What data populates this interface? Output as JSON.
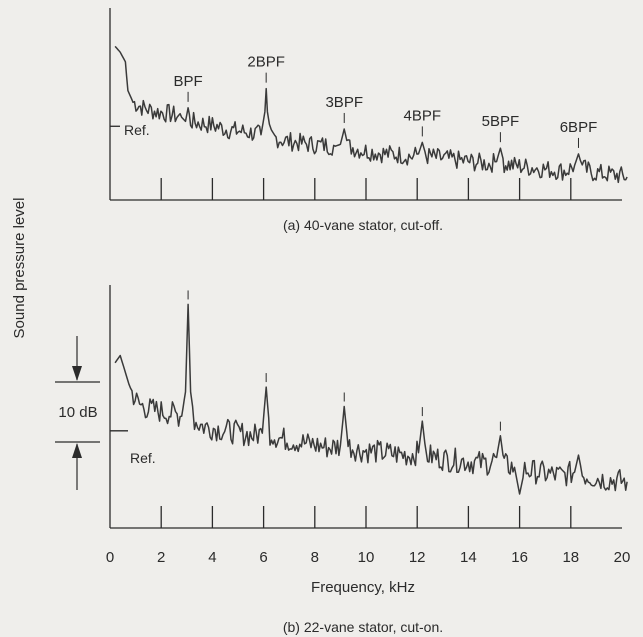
{
  "ylabel": "Sound pressure level",
  "xlabel": "Frequency, kHz",
  "scale_label": "10 dB",
  "colors": {
    "trace": "#3a3a3a",
    "axis": "#2b2b2b",
    "background": "#efeeeb"
  },
  "chart_data": [
    {
      "type": "line",
      "title": "(a) 40-vane stator, cut-off.",
      "xlim": [
        0,
        20
      ],
      "ylim": [
        0,
        50
      ],
      "ref_label": "Ref.",
      "ref_level": 19.2,
      "annotations": [
        {
          "label": "BPF",
          "x": 3.05
        },
        {
          "label": "2BPF",
          "x": 6.1
        },
        {
          "label": "3BPF",
          "x": 9.15
        },
        {
          "label": "4BPF",
          "x": 12.2
        },
        {
          "label": "5BPF",
          "x": 15.25
        },
        {
          "label": "6BPF",
          "x": 18.3
        }
      ],
      "series": [
        {
          "values": [
            [
              0.2,
              40
            ],
            [
              0.4,
              38.5
            ],
            [
              0.6,
              36
            ],
            [
              0.7,
              28.5
            ],
            [
              0.9,
              25.5
            ],
            [
              1.3,
              24
            ],
            [
              1.8,
              23
            ],
            [
              2.3,
              22.5
            ],
            [
              2.8,
              21.5
            ],
            [
              2.95,
              20.5
            ],
            [
              3.05,
              24
            ],
            [
              3.15,
              20.5
            ],
            [
              3.5,
              20
            ],
            [
              4.0,
              19.5
            ],
            [
              4.6,
              18.3
            ],
            [
              5.0,
              18
            ],
            [
              5.5,
              17.5
            ],
            [
              5.9,
              17
            ],
            [
              6.05,
              23
            ],
            [
              6.1,
              29
            ],
            [
              6.15,
              23
            ],
            [
              6.3,
              16.5
            ],
            [
              6.8,
              15.5
            ],
            [
              7.3,
              15
            ],
            [
              7.8,
              14.5
            ],
            [
              8.3,
              14.3
            ],
            [
              8.8,
              14
            ],
            [
              9.0,
              14.5
            ],
            [
              9.15,
              18.5
            ],
            [
              9.3,
              14
            ],
            [
              9.8,
              13
            ],
            [
              10.3,
              12.5
            ],
            [
              10.8,
              12
            ],
            [
              11.3,
              11.8
            ],
            [
              11.8,
              11.3
            ],
            [
              12.05,
              12
            ],
            [
              12.2,
              15
            ],
            [
              12.35,
              11.5
            ],
            [
              12.8,
              11
            ],
            [
              13.3,
              10.6
            ],
            [
              13.8,
              10.2
            ],
            [
              14.3,
              9.8
            ],
            [
              14.8,
              9.4
            ],
            [
              15.1,
              10
            ],
            [
              15.25,
              13.5
            ],
            [
              15.4,
              9.5
            ],
            [
              15.8,
              9
            ],
            [
              16.3,
              8.6
            ],
            [
              16.8,
              8.2
            ],
            [
              17.3,
              7.8
            ],
            [
              17.8,
              7.5
            ],
            [
              18.15,
              9
            ],
            [
              18.3,
              12
            ],
            [
              18.45,
              8.5
            ],
            [
              18.8,
              7.2
            ],
            [
              19.3,
              6.8
            ],
            [
              19.8,
              6.5
            ],
            [
              20.2,
              6
            ]
          ]
        }
      ]
    },
    {
      "type": "line",
      "title": "(b) 22-vane stator, cut-on.",
      "xlim": [
        0,
        20
      ],
      "ylim": [
        0,
        50
      ],
      "ref_label": "Ref.",
      "ref_level": 20,
      "annotations": [
        {
          "label": "",
          "x": 3.05
        },
        {
          "label": "",
          "x": 6.1
        },
        {
          "label": "",
          "x": 9.15
        },
        {
          "label": "",
          "x": 12.2
        },
        {
          "label": "",
          "x": 15.25
        }
      ],
      "series": [
        {
          "values": [
            [
              0.2,
              34
            ],
            [
              0.4,
              35.5
            ],
            [
              0.6,
              32
            ],
            [
              0.8,
              28.5
            ],
            [
              1.1,
              25.5
            ],
            [
              1.5,
              24.5
            ],
            [
              2.0,
              24
            ],
            [
              2.5,
              23.5
            ],
            [
              2.8,
              23
            ],
            [
              2.95,
              28
            ],
            [
              3.05,
              46
            ],
            [
              3.15,
              28
            ],
            [
              3.3,
              22
            ],
            [
              3.6,
              21
            ],
            [
              4.1,
              20.5
            ],
            [
              4.6,
              20
            ],
            [
              5.1,
              19.5
            ],
            [
              5.6,
              19
            ],
            [
              5.95,
              19.5
            ],
            [
              6.1,
              29
            ],
            [
              6.25,
              19.5
            ],
            [
              6.6,
              18.5
            ],
            [
              7.1,
              18
            ],
            [
              7.6,
              17.5
            ],
            [
              8.1,
              17
            ],
            [
              8.6,
              16.5
            ],
            [
              9.0,
              17
            ],
            [
              9.15,
              25
            ],
            [
              9.3,
              17
            ],
            [
              9.7,
              16
            ],
            [
              10.2,
              15.8
            ],
            [
              10.7,
              15.5
            ],
            [
              11.2,
              15.2
            ],
            [
              11.7,
              15
            ],
            [
              12.05,
              15.5
            ],
            [
              12.2,
              22
            ],
            [
              12.35,
              15
            ],
            [
              12.8,
              14.5
            ],
            [
              13.3,
              14
            ],
            [
              13.8,
              13.8
            ],
            [
              14.3,
              13.5
            ],
            [
              14.8,
              13.3
            ],
            [
              15.1,
              14.5
            ],
            [
              15.25,
              19
            ],
            [
              15.4,
              13
            ],
            [
              15.8,
              12.5
            ],
            [
              16.0,
              7
            ],
            [
              16.2,
              12
            ],
            [
              16.7,
              11.5
            ],
            [
              17.2,
              11
            ],
            [
              17.7,
              10.8
            ],
            [
              18.15,
              11.5
            ],
            [
              18.3,
              15
            ],
            [
              18.45,
              11
            ],
            [
              18.8,
              10.5
            ],
            [
              19.3,
              10
            ],
            [
              19.8,
              9.8
            ],
            [
              20.2,
              9.5
            ]
          ]
        }
      ]
    }
  ]
}
